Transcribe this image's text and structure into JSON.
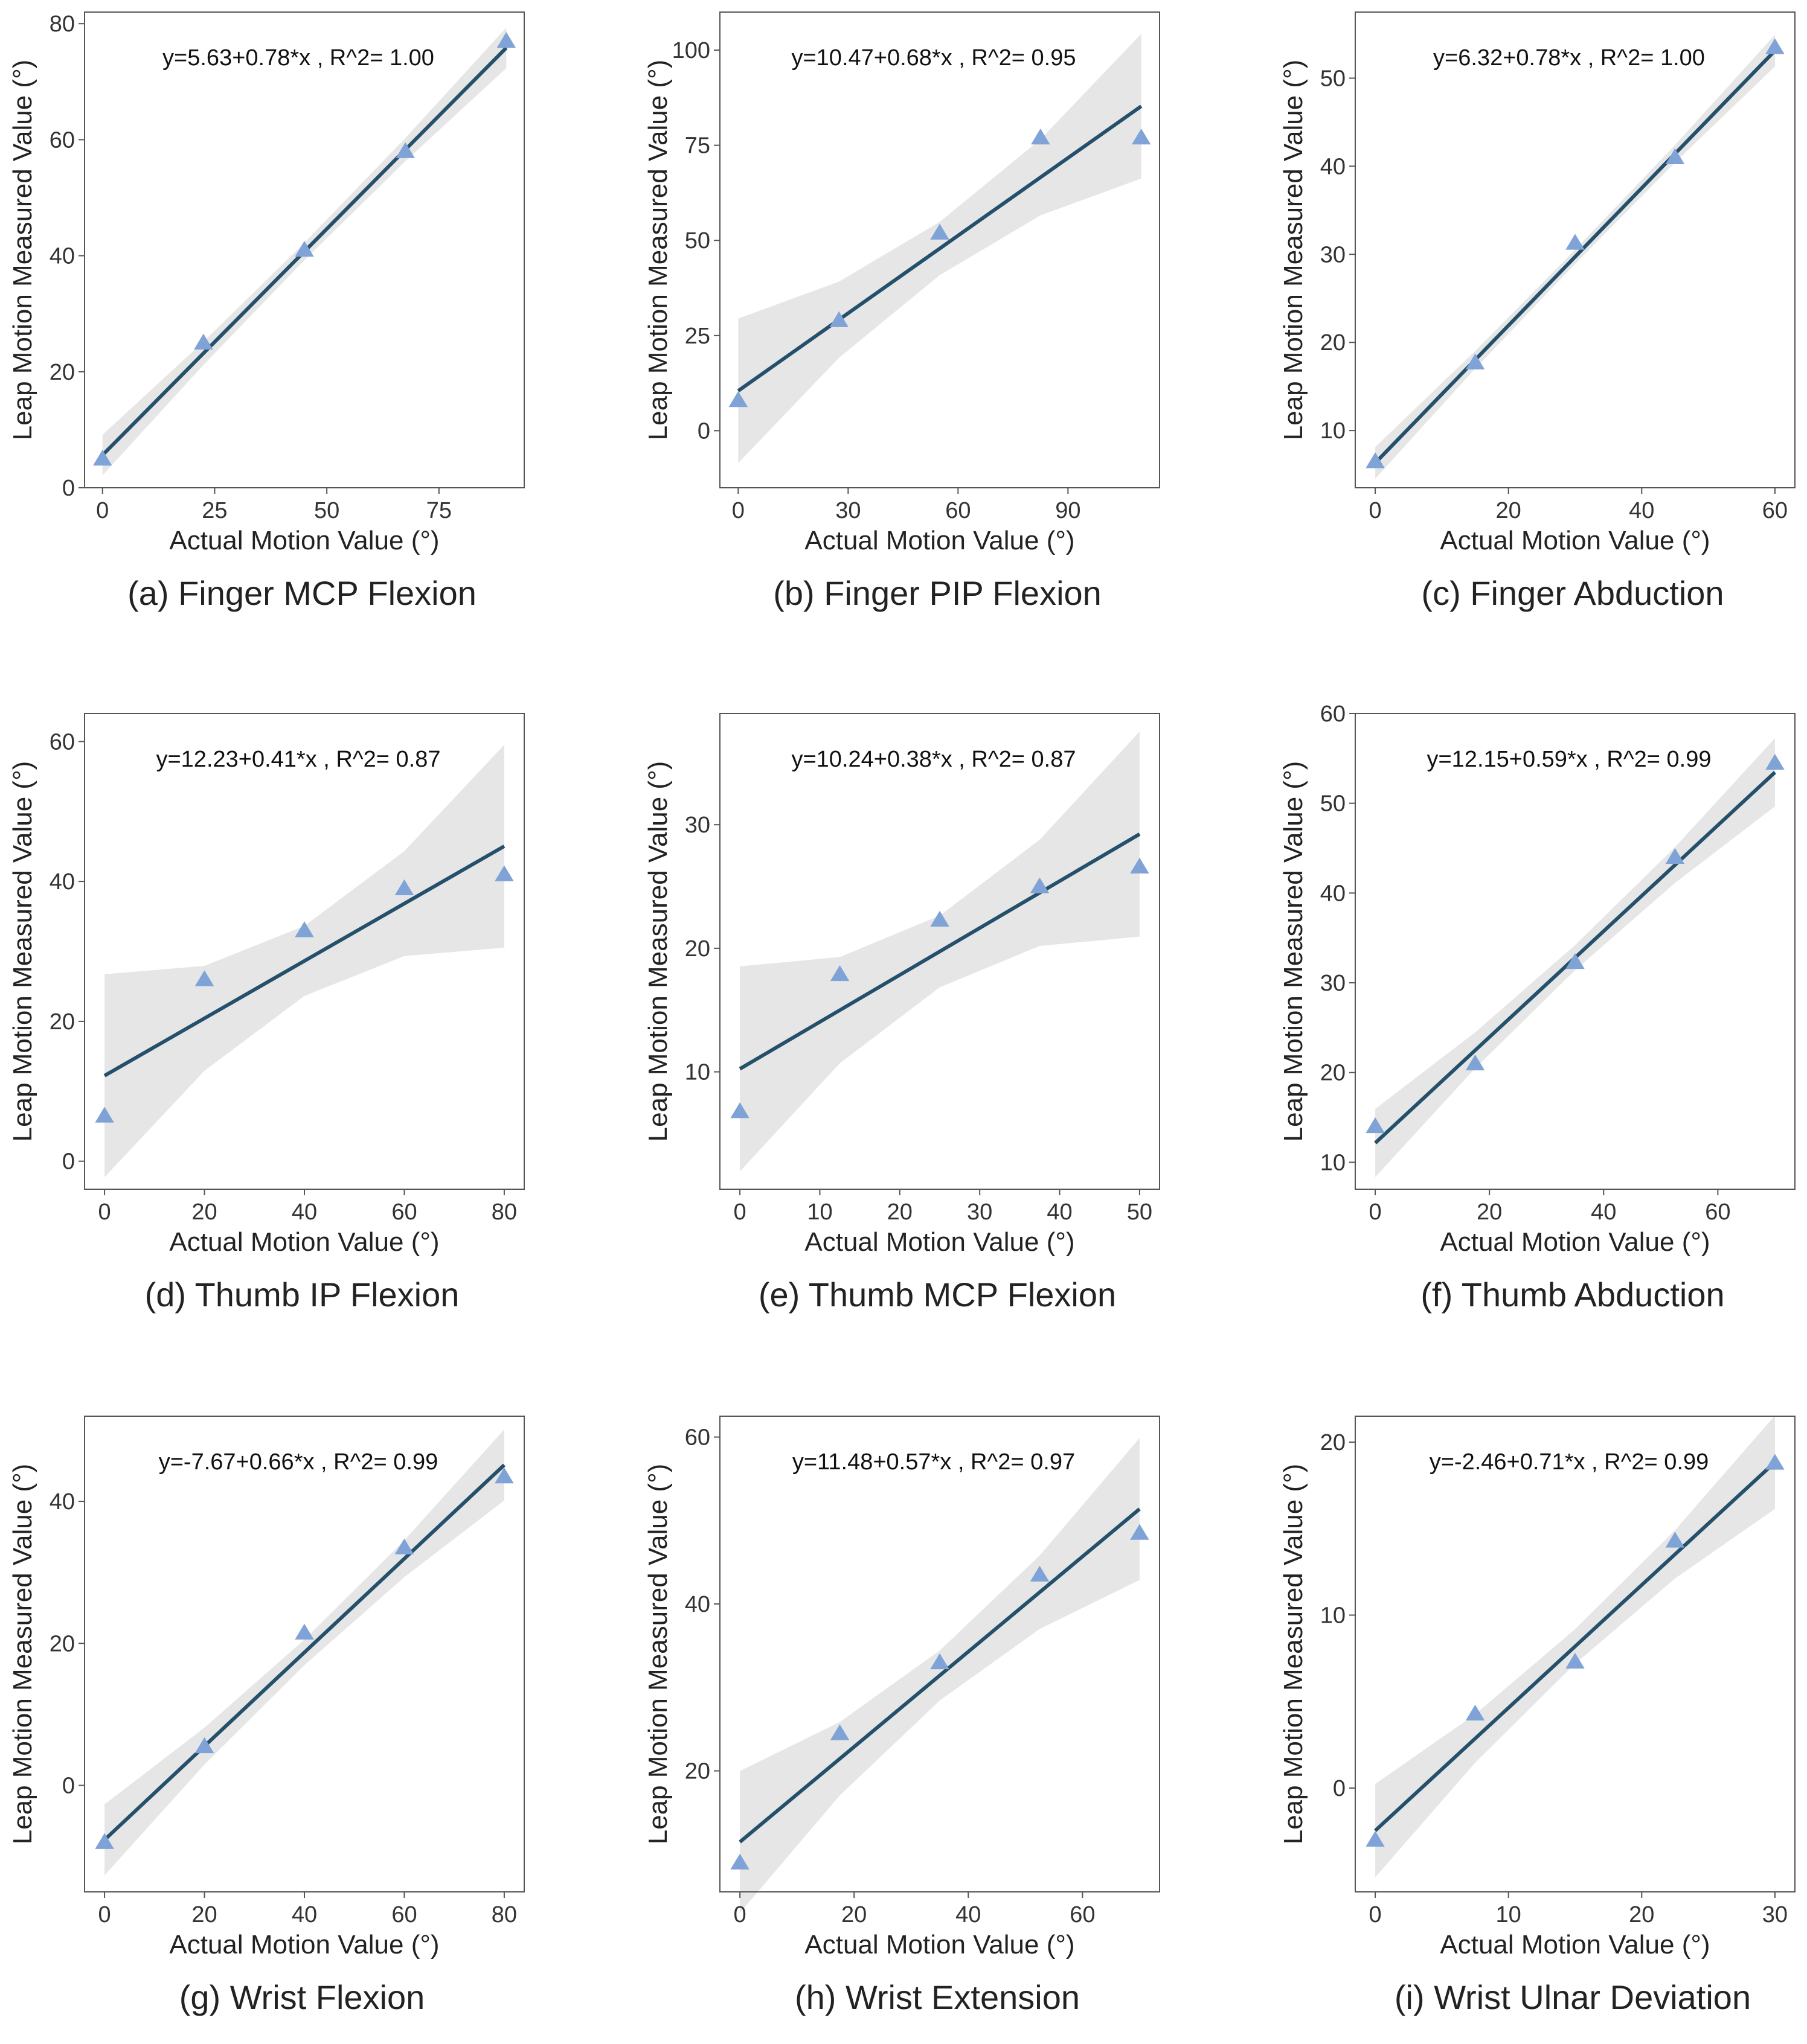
{
  "figure": {
    "colors": {
      "line": "#24506b",
      "band": "#e6e6e6",
      "points": "#7fa3d6",
      "frame": "#555555",
      "text": "#333333"
    }
  },
  "chart_data": [
    {
      "id": "a",
      "type": "scatter",
      "caption": "(a) Finger MCP Flexion",
      "equation": "y=5.63+0.78*x , R^2= 1.00",
      "xlabel": "Actual Motion Value (°)",
      "ylabel": "Leap Motion Measured Value (°)",
      "xlim": [
        -4,
        94
      ],
      "ylim": [
        0,
        82
      ],
      "xticks": [
        0,
        25,
        50,
        75
      ],
      "yticks": [
        0,
        20,
        40,
        60,
        80
      ],
      "x": [
        0,
        22.5,
        45,
        67.5,
        90
      ],
      "y": [
        5,
        25,
        41,
        58,
        77
      ],
      "fit": {
        "intercept": 5.63,
        "slope": 0.78
      },
      "band_halfwidth": [
        3.5,
        2.0,
        1.5,
        2.0,
        3.5
      ]
    },
    {
      "id": "b",
      "type": "scatter",
      "caption": "(b) Finger PIP Flexion",
      "equation": "y=10.47+0.68*x , R^2= 0.95",
      "xlabel": "Actual Motion Value (°)",
      "ylabel": "Leap Motion Measured Value (°)",
      "xlim": [
        -5,
        115
      ],
      "ylim": [
        -15,
        110
      ],
      "xticks": [
        0,
        30,
        60,
        90
      ],
      "yticks": [
        0,
        25,
        50,
        75,
        100
      ],
      "x": [
        0,
        27.5,
        55,
        82.5,
        110
      ],
      "y": [
        8,
        29,
        52,
        77,
        77
      ],
      "fit": {
        "intercept": 10.47,
        "slope": 0.68
      },
      "band_halfwidth": [
        19,
        10,
        7,
        10,
        19
      ]
    },
    {
      "id": "c",
      "type": "scatter",
      "caption": "(c) Finger Abduction",
      "equation": "y=6.32+0.78*x , R^2= 1.00",
      "xlabel": "Actual Motion Value (°)",
      "ylabel": "Leap Motion Measured Value (°)",
      "xlim": [
        -3,
        63
      ],
      "ylim": [
        3.5,
        57.5
      ],
      "xticks": [
        0,
        20,
        40,
        60
      ],
      "yticks": [
        10,
        20,
        30,
        40,
        50
      ],
      "x": [
        0,
        15,
        30,
        45,
        60
      ],
      "y": [
        6.5,
        17.7,
        31.3,
        41,
        53.5
      ],
      "fit": {
        "intercept": 6.32,
        "slope": 0.78
      },
      "band_halfwidth": [
        1.8,
        1.0,
        0.8,
        1.0,
        1.8
      ]
    },
    {
      "id": "d",
      "type": "scatter",
      "caption": "(d) Thumb IP Flexion",
      "equation": "y=12.23+0.41*x , R^2= 0.87",
      "xlabel": "Actual Motion Value (°)",
      "ylabel": "Leap Motion Measured Value (°)",
      "xlim": [
        -4,
        84
      ],
      "ylim": [
        -4,
        64
      ],
      "xticks": [
        0,
        20,
        40,
        60,
        80
      ],
      "yticks": [
        0,
        20,
        40,
        60
      ],
      "x": [
        0,
        20,
        40,
        60,
        80
      ],
      "y": [
        6.5,
        26,
        33,
        39,
        41
      ],
      "fit": {
        "intercept": 12.23,
        "slope": 0.41
      },
      "band_halfwidth": [
        14.5,
        7.5,
        5,
        7.5,
        14.5
      ]
    },
    {
      "id": "e",
      "type": "scatter",
      "caption": "(e) Thumb MCP Flexion",
      "equation": "y=10.24+0.38*x , R^2= 0.87",
      "xlabel": "Actual Motion Value (°)",
      "ylabel": "Leap Motion Measured Value (°)",
      "xlim": [
        -2.5,
        52.5
      ],
      "ylim": [
        0.5,
        39
      ],
      "xticks": [
        0,
        10,
        20,
        30,
        40,
        50
      ],
      "yticks": [
        10,
        20,
        30
      ],
      "x": [
        0,
        12.5,
        25,
        37.5,
        50
      ],
      "y": [
        6.8,
        17.9,
        22.3,
        25,
        26.6
      ],
      "fit": {
        "intercept": 10.24,
        "slope": 0.38
      },
      "band_halfwidth": [
        8.3,
        4.3,
        2.9,
        4.3,
        8.3
      ]
    },
    {
      "id": "f",
      "type": "scatter",
      "caption": "(f) Thumb Abduction",
      "equation": "y=12.15+0.59*x , R^2= 0.99",
      "xlabel": "Actual Motion Value (°)",
      "ylabel": "Leap Motion Measured Value (°)",
      "xlim": [
        -3.5,
        73.5
      ],
      "ylim": [
        7,
        60
      ],
      "xticks": [
        0,
        20,
        40,
        60
      ],
      "yticks": [
        10,
        20,
        30,
        40,
        50,
        60
      ],
      "x": [
        0,
        17.5,
        35,
        52.5,
        70
      ],
      "y": [
        14,
        21,
        32.3,
        44,
        54.5
      ],
      "fit": {
        "intercept": 12.15,
        "slope": 0.59
      },
      "band_halfwidth": [
        3.8,
        2.0,
        1.4,
        2.0,
        3.8
      ]
    },
    {
      "id": "g",
      "type": "scatter",
      "caption": "(g) Wrist Flexion",
      "equation": "y=-7.67+0.66*x , R^2= 0.99",
      "xlabel": "Actual Motion Value (°)",
      "ylabel": "Leap Motion Measured Value (°)",
      "xlim": [
        -4,
        84
      ],
      "ylim": [
        -15,
        52
      ],
      "xticks": [
        0,
        20,
        40,
        60,
        80
      ],
      "yticks": [
        0,
        20,
        40
      ],
      "x": [
        0,
        20,
        40,
        60,
        80
      ],
      "y": [
        -8,
        5.5,
        21.5,
        33.5,
        43.5
      ],
      "fit": {
        "intercept": -7.67,
        "slope": 0.66
      },
      "band_halfwidth": [
        5,
        2.6,
        1.8,
        2.6,
        5
      ]
    },
    {
      "id": "h",
      "type": "scatter",
      "caption": "(h) Wrist Extension",
      "equation": "y=11.48+0.57*x , R^2= 0.97",
      "xlabel": "Actual Motion Value (°)",
      "ylabel": "Leap Motion Measured Value (°)",
      "xlim": [
        -3.5,
        73.5
      ],
      "ylim": [
        5.5,
        62.5
      ],
      "xticks": [
        0,
        20,
        40,
        60
      ],
      "yticks": [
        20,
        40,
        60
      ],
      "x": [
        0,
        17.5,
        35,
        52.5,
        70
      ],
      "y": [
        9,
        24.5,
        33,
        43.5,
        48.5
      ],
      "fit": {
        "intercept": 11.48,
        "slope": 0.57
      },
      "band_halfwidth": [
        8.5,
        4.4,
        3,
        4.4,
        8.5
      ]
    },
    {
      "id": "i",
      "type": "scatter",
      "caption": "(i) Wrist Ulnar Deviation",
      "equation": "y=-2.46+0.71*x , R^2= 0.99",
      "xlabel": "Actual Motion Value (°)",
      "ylabel": "Leap Motion Measured Value (°)",
      "xlim": [
        -1.5,
        31.5
      ],
      "ylim": [
        -6,
        21.5
      ],
      "xticks": [
        0,
        10,
        20,
        30
      ],
      "yticks": [
        0,
        10,
        20
      ],
      "x": [
        0,
        7.5,
        15,
        22.5,
        30
      ],
      "y": [
        -3,
        4.3,
        7.3,
        14.3,
        18.8
      ],
      "fit": {
        "intercept": -2.46,
        "slope": 0.71
      },
      "band_halfwidth": [
        2.7,
        1.4,
        1.0,
        1.4,
        2.7
      ]
    }
  ]
}
